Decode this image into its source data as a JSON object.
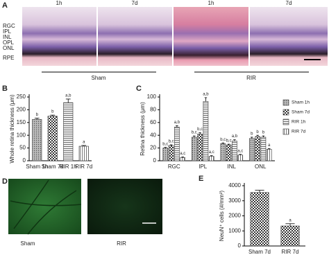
{
  "figure": {
    "panel_a": {
      "label": "A",
      "times": [
        "1h",
        "7d",
        "1h",
        "7d"
      ],
      "layers": [
        "RGC",
        "IPL",
        "INL",
        "OPL",
        "ONL",
        "RPE"
      ],
      "groups": [
        "Sham",
        "RIR"
      ]
    },
    "panel_d": {
      "label": "D",
      "groups": [
        "Sham",
        "RIR"
      ]
    }
  },
  "chart_data": [
    {
      "type": "bar",
      "panel": "B",
      "y_label": "Whole retina thickness (μm)",
      "categories": [
        "Sham 1h",
        "Sham 7d",
        "RIR 1h",
        "RIR 7d"
      ],
      "values": [
        162,
        175,
        228,
        57
      ],
      "errors": [
        5,
        4,
        14,
        3
      ],
      "annotations": [
        "b",
        "b",
        "a,b",
        "a"
      ],
      "patterns": [
        "dots",
        "checker",
        "hlines",
        "vlines"
      ],
      "color": "#333333",
      "ylim": [
        0,
        250
      ],
      "yticks": [
        0,
        50,
        100,
        150,
        200,
        250
      ]
    },
    {
      "type": "grouped_bar",
      "panel": "C",
      "y_label": "Retina thickness (μm)",
      "categories": [
        "RGC",
        "IPL",
        "INL",
        "ONL"
      ],
      "series": [
        {
          "name": "Sham 1h",
          "pattern": "dots",
          "values": [
            20,
            37,
            27,
            35
          ],
          "errors": [
            1,
            2,
            1,
            2
          ],
          "annotations": [
            "b,c",
            "b,c",
            "b,c",
            "b"
          ]
        },
        {
          "name": "Sham 7d",
          "pattern": "checker",
          "values": [
            24,
            42,
            25,
            38
          ],
          "errors": [
            1,
            2,
            1,
            2
          ],
          "annotations": [
            "b,c",
            "b,c",
            "b,c",
            "b"
          ]
        },
        {
          "name": "RIR 1h",
          "pattern": "hlines",
          "values": [
            53,
            93,
            31,
            37
          ],
          "errors": [
            2,
            6,
            2,
            2
          ],
          "annotations": [
            "a,b",
            "a,b",
            "a,b",
            "b"
          ]
        },
        {
          "name": "RIR 7d",
          "pattern": "vlines",
          "values": [
            5,
            7,
            9,
            18
          ],
          "errors": [
            1,
            1,
            1,
            1
          ],
          "annotations": [
            "a,c",
            "a,c",
            "a,c",
            "a"
          ]
        }
      ],
      "color": "#333333",
      "ylim": [
        0,
        100
      ],
      "yticks": [
        0,
        20,
        40,
        60,
        80,
        100
      ]
    },
    {
      "type": "bar",
      "panel": "E",
      "y_label": "NeuN⁺ cells (#/mm²)",
      "categories": [
        "Sham 7d",
        "RIR 7d"
      ],
      "values": [
        3550,
        1330
      ],
      "errors": [
        150,
        150
      ],
      "annotations": [
        null,
        "a"
      ],
      "patterns": [
        "checker",
        "checker"
      ],
      "color": "#333333",
      "ylim": [
        0,
        4000
      ],
      "yticks": [
        0,
        1000,
        2000,
        3000,
        4000
      ]
    }
  ]
}
